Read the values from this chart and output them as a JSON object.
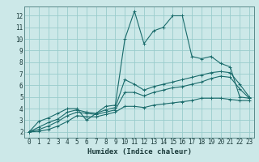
{
  "title": "",
  "xlabel": "Humidex (Indice chaleur)",
  "background_color": "#cce8e8",
  "grid_color": "#99cccc",
  "line_color": "#1a6b6b",
  "xlim": [
    -0.5,
    23.5
  ],
  "ylim": [
    1.5,
    12.8
  ],
  "xticks": [
    0,
    1,
    2,
    3,
    4,
    5,
    6,
    7,
    8,
    9,
    10,
    11,
    12,
    13,
    14,
    15,
    16,
    17,
    18,
    19,
    20,
    21,
    22,
    23
  ],
  "yticks": [
    2,
    3,
    4,
    5,
    6,
    7,
    8,
    9,
    10,
    11,
    12
  ],
  "line1": {
    "x": [
      0,
      1,
      2,
      3,
      4,
      5,
      6,
      7,
      8,
      9,
      10,
      11,
      12,
      13,
      14,
      15,
      16,
      17,
      18,
      19,
      20,
      21,
      22,
      23
    ],
    "y": [
      2.0,
      2.9,
      3.2,
      3.6,
      4.0,
      4.0,
      3.0,
      3.6,
      4.2,
      4.3,
      10.0,
      12.4,
      9.6,
      10.7,
      11.0,
      12.0,
      12.0,
      8.5,
      8.3,
      8.5,
      7.9,
      7.6,
      5.0,
      4.9
    ]
  },
  "line2": {
    "x": [
      0,
      1,
      2,
      3,
      4,
      5,
      6,
      7,
      8,
      9,
      10,
      11,
      12,
      13,
      14,
      15,
      16,
      17,
      18,
      19,
      20,
      21,
      22,
      23
    ],
    "y": [
      2.0,
      2.4,
      2.8,
      3.1,
      3.7,
      3.9,
      3.7,
      3.6,
      3.9,
      4.1,
      6.5,
      6.1,
      5.6,
      5.9,
      6.1,
      6.3,
      6.5,
      6.7,
      6.9,
      7.1,
      7.2,
      7.1,
      6.1,
      5.0
    ]
  },
  "line3": {
    "x": [
      0,
      1,
      2,
      3,
      4,
      5,
      6,
      7,
      8,
      9,
      10,
      11,
      12,
      13,
      14,
      15,
      16,
      17,
      18,
      19,
      20,
      21,
      22,
      23
    ],
    "y": [
      2.0,
      2.2,
      2.5,
      2.9,
      3.4,
      3.7,
      3.6,
      3.5,
      3.7,
      3.9,
      5.4,
      5.4,
      5.1,
      5.4,
      5.6,
      5.8,
      5.9,
      6.1,
      6.3,
      6.6,
      6.8,
      6.7,
      5.7,
      4.9
    ]
  },
  "line4": {
    "x": [
      0,
      1,
      2,
      3,
      4,
      5,
      6,
      7,
      8,
      9,
      10,
      11,
      12,
      13,
      14,
      15,
      16,
      17,
      18,
      19,
      20,
      21,
      22,
      23
    ],
    "y": [
      2.0,
      2.05,
      2.2,
      2.5,
      2.9,
      3.4,
      3.3,
      3.3,
      3.5,
      3.7,
      4.2,
      4.2,
      4.1,
      4.3,
      4.4,
      4.5,
      4.6,
      4.7,
      4.9,
      4.9,
      4.9,
      4.8,
      4.7,
      4.7
    ]
  },
  "figsize": [
    3.2,
    2.0
  ],
  "dpi": 100
}
